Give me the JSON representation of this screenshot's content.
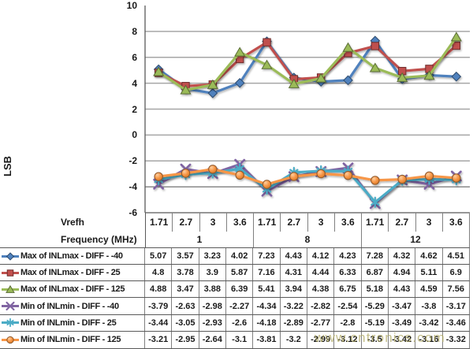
{
  "watermark": {
    "text": "www.cntronics.com",
    "color": "rgba(174,168,96,0.72)"
  },
  "y_axis": {
    "title": "LSB"
  },
  "category_axis": {
    "row1_title": "Vrefh",
    "row2_title": "Frequency (MHz)"
  },
  "chart_data": {
    "type": "line",
    "ylabel": "LSB",
    "ylim": [
      -6,
      10
    ],
    "ytick_step": 2,
    "grid": true,
    "legend_position": "data-table-left",
    "categories_vrefh": [
      "1.71",
      "2.7",
      "3",
      "3.6",
      "1.71",
      "2.7",
      "3",
      "3.6",
      "1.71",
      "2.7",
      "3",
      "3.6"
    ],
    "frequency_groups": [
      {
        "label": "1",
        "span": 4
      },
      {
        "label": "8",
        "span": 4
      },
      {
        "label": "12",
        "span": 4
      }
    ],
    "colors": {
      "gridline": "#A6A6A6",
      "gridline_dark": "#4D4D4D",
      "axis_line": "#595959",
      "cell_border": "#808080"
    },
    "series": [
      {
        "name": "Max of INLmax - DIFF - -40",
        "marker": "diamond",
        "color": "#4F81BD",
        "values": [
          5.07,
          3.57,
          3.23,
          4.02,
          7.23,
          4.43,
          4.12,
          4.23,
          7.28,
          4.32,
          4.62,
          4.51
        ]
      },
      {
        "name": "Max of INLmax - DIFF - 25",
        "marker": "square",
        "color": "#C0504D",
        "values": [
          4.8,
          3.78,
          3.9,
          5.87,
          7.16,
          4.31,
          4.44,
          6.33,
          6.87,
          4.94,
          5.11,
          6.9
        ]
      },
      {
        "name": "Max of INLmax - DIFF - 125",
        "marker": "triangle",
        "color": "#9BBB59",
        "values": [
          4.88,
          3.47,
          3.88,
          6.39,
          5.41,
          3.94,
          4.38,
          6.75,
          5.18,
          4.43,
          4.59,
          7.56
        ]
      },
      {
        "name": "Min of INLmin - DIFF - -40",
        "marker": "x",
        "color": "#8064A2",
        "values": [
          -3.79,
          -2.63,
          -2.98,
          -2.27,
          -4.34,
          -3.22,
          -2.82,
          -2.54,
          -5.29,
          -3.47,
          -3.8,
          -3.17
        ]
      },
      {
        "name": "Min of INLmin - DIFF - 25",
        "marker": "asterisk",
        "color": "#4BACC6",
        "values": [
          -3.44,
          -3.05,
          -2.93,
          -2.6,
          -4.18,
          -2.89,
          -2.77,
          -2.8,
          -5.19,
          -3.49,
          -3.42,
          -3.46
        ]
      },
      {
        "name": "Min of INLmin - DIFF - 125",
        "marker": "circle",
        "color": "#F79646",
        "values": [
          -3.21,
          -2.95,
          -2.64,
          -3.1,
          -3.81,
          -3.2,
          -2.99,
          -3.12,
          -3.5,
          -3.42,
          -3.16,
          -3.32
        ]
      }
    ]
  }
}
